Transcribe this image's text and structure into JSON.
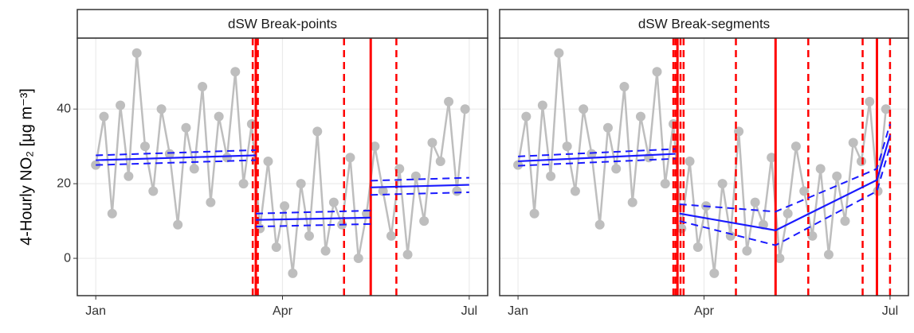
{
  "y_label": "4-Hourly NO₂ [μg m⁻³]",
  "chart_data": [
    {
      "type": "line",
      "title": "dSW Break-points",
      "xlim": [
        -9,
        191
      ],
      "xticks": [
        {
          "value": 0,
          "label": "Jan"
        },
        {
          "value": 91,
          "label": "Apr"
        },
        {
          "value": 182,
          "label": "Jul"
        }
      ],
      "ylim": [
        -10,
        59
      ],
      "yticks": [
        0,
        20,
        40
      ],
      "grid": true,
      "points": {
        "color": "#bebebe",
        "x": [
          0,
          4,
          8,
          12,
          16,
          20,
          24,
          28,
          32,
          36,
          40,
          44,
          48,
          52,
          56,
          60,
          64,
          68,
          72,
          76,
          80,
          84,
          88,
          92,
          96,
          100,
          104,
          108,
          112,
          116,
          120,
          124,
          128,
          132,
          136,
          140,
          144,
          148,
          152,
          156,
          160,
          164,
          168,
          172,
          176,
          180
        ],
        "values": [
          25,
          38,
          12,
          41,
          22,
          55,
          30,
          18,
          40,
          28,
          9,
          35,
          24,
          46,
          15,
          38,
          27,
          50,
          20,
          36,
          8,
          26,
          3,
          14,
          -4,
          20,
          6,
          34,
          2,
          15,
          9,
          27,
          0,
          12,
          30,
          18,
          6,
          24,
          1,
          22,
          10,
          31,
          26,
          42,
          18,
          40
        ]
      },
      "fit_color": "#1a1aff",
      "fit": [
        {
          "x": [
            0,
            78
          ],
          "values": [
            26.3,
            27.6
          ],
          "lower": [
            25,
            26.3
          ],
          "upper": [
            27.6,
            29
          ]
        },
        {
          "x": [
            78,
            134
          ],
          "values": [
            10.3,
            10.9
          ],
          "lower": [
            8.5,
            9.2
          ],
          "upper": [
            12,
            12.8
          ]
        },
        {
          "x": [
            134,
            182
          ],
          "values": [
            19,
            19.7
          ],
          "lower": [
            17,
            17.7
          ],
          "upper": [
            20.8,
            21.6
          ]
        }
      ],
      "break_color": "#ff0000",
      "breaks": [
        78,
        134
      ],
      "break_ci": [
        76.5,
        79,
        121,
        146.5
      ]
    },
    {
      "type": "line",
      "title": "dSW Break-segments",
      "xlim": [
        -9,
        191
      ],
      "xticks": [
        {
          "value": 0,
          "label": "Jan"
        },
        {
          "value": 91,
          "label": "Apr"
        },
        {
          "value": 182,
          "label": "Jul"
        }
      ],
      "ylim": [
        -10,
        59
      ],
      "yticks": [
        0,
        20,
        40
      ],
      "grid": true,
      "points": {
        "color": "#bebebe",
        "x": [
          0,
          4,
          8,
          12,
          16,
          20,
          24,
          28,
          32,
          36,
          40,
          44,
          48,
          52,
          56,
          60,
          64,
          68,
          72,
          76,
          80,
          84,
          88,
          92,
          96,
          100,
          104,
          108,
          112,
          116,
          120,
          124,
          128,
          132,
          136,
          140,
          144,
          148,
          152,
          156,
          160,
          164,
          168,
          172,
          176,
          180
        ],
        "values": [
          25,
          38,
          12,
          41,
          22,
          55,
          30,
          18,
          40,
          28,
          9,
          35,
          24,
          46,
          15,
          38,
          27,
          50,
          20,
          36,
          8,
          26,
          3,
          14,
          -4,
          20,
          6,
          34,
          2,
          15,
          9,
          27,
          0,
          12,
          30,
          18,
          6,
          24,
          1,
          22,
          10,
          31,
          26,
          42,
          18,
          40
        ]
      },
      "fit_color": "#1a1aff",
      "fit": [
        {
          "x": [
            0,
            77
          ],
          "values": [
            26,
            28
          ],
          "lower": [
            24.8,
            26.7
          ],
          "upper": [
            27.3,
            29.3
          ]
        },
        {
          "x": [
            79,
            126,
            175.6,
            182
          ],
          "values": [
            12,
            7.5,
            21,
            33
          ],
          "lower": [
            10,
            3.5,
            18,
            30
          ],
          "upper": [
            14.5,
            12.5,
            24,
            36
          ]
        }
      ],
      "break_color": "#ff0000",
      "breaks": [
        78,
        126,
        175.6
      ],
      "break_ci": [
        76,
        77,
        79.5,
        81,
        106.6,
        142,
        168.6,
        182
      ]
    }
  ]
}
